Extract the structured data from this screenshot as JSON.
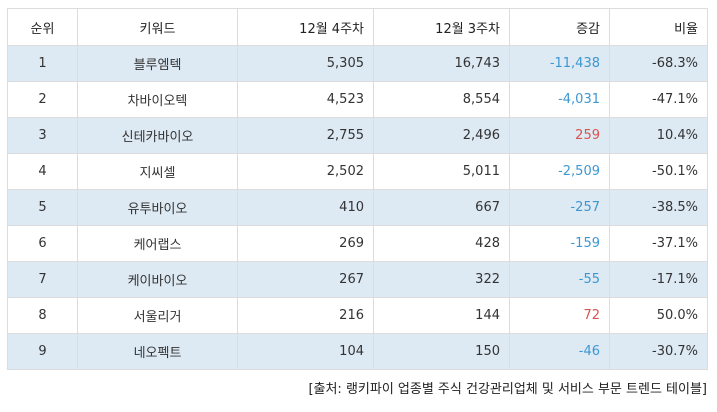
{
  "table": {
    "headers": [
      "순위",
      "키워드",
      "12월 4주차",
      "12월 3주차",
      "증감",
      "비율"
    ],
    "rows": [
      {
        "rank": "1",
        "keyword": "블루엠텍",
        "week4": "5,305",
        "week3": "16,743",
        "change": "-11,438",
        "ratio": "-68.3%",
        "trend": "neg"
      },
      {
        "rank": "2",
        "keyword": "차바이오텍",
        "week4": "4,523",
        "week3": "8,554",
        "change": "-4,031",
        "ratio": "-47.1%",
        "trend": "neg"
      },
      {
        "rank": "3",
        "keyword": "신테카바이오",
        "week4": "2,755",
        "week3": "2,496",
        "change": "259",
        "ratio": "10.4%",
        "trend": "pos"
      },
      {
        "rank": "4",
        "keyword": "지씨셀",
        "week4": "2,502",
        "week3": "5,011",
        "change": "-2,509",
        "ratio": "-50.1%",
        "trend": "neg"
      },
      {
        "rank": "5",
        "keyword": "유투바이오",
        "week4": "410",
        "week3": "667",
        "change": "-257",
        "ratio": "-38.5%",
        "trend": "neg"
      },
      {
        "rank": "6",
        "keyword": "케어랩스",
        "week4": "269",
        "week3": "428",
        "change": "-159",
        "ratio": "-37.1%",
        "trend": "neg"
      },
      {
        "rank": "7",
        "keyword": "케이바이오",
        "week4": "267",
        "week3": "322",
        "change": "-55",
        "ratio": "-17.1%",
        "trend": "neg"
      },
      {
        "rank": "8",
        "keyword": "서울리거",
        "week4": "216",
        "week3": "144",
        "change": "72",
        "ratio": "50.0%",
        "trend": "pos"
      },
      {
        "rank": "9",
        "keyword": "네오펙트",
        "week4": "104",
        "week3": "150",
        "change": "-46",
        "ratio": "-30.7%",
        "trend": "neg"
      }
    ]
  },
  "colors": {
    "negative": "#3d97d3",
    "positive": "#d9534f",
    "row_shade": "#dde9f3"
  },
  "source": "[출처: 랭키파이 업종별 주식 건강관리업체 및 서비스 부문 트렌드 테이블]"
}
